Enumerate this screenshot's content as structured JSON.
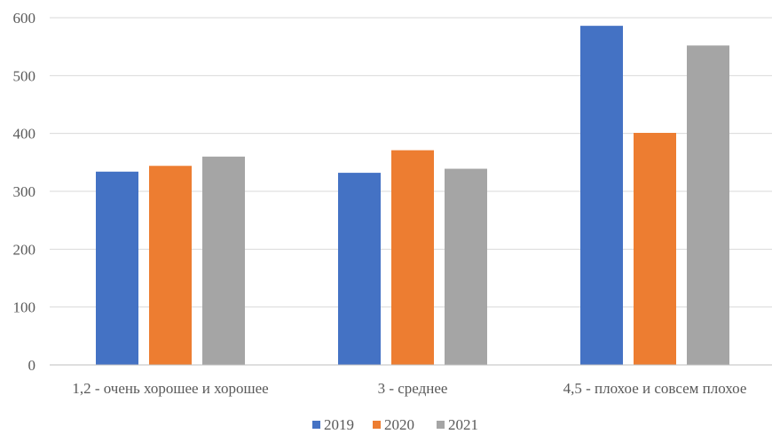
{
  "chart_data": {
    "type": "bar",
    "title": "",
    "xlabel": "",
    "ylabel": "",
    "categories": [
      "1,2 - очень хорошее и хорошее",
      "3 - среднее",
      "4,5 - плохое и совсем плохое"
    ],
    "series": [
      {
        "name": "2019",
        "color": "#4472C4",
        "values": [
          334,
          332,
          586
        ]
      },
      {
        "name": "2020",
        "color": "#ED7D31",
        "values": [
          344,
          371,
          401
        ]
      },
      {
        "name": "2021",
        "color": "#A5A5A5",
        "values": [
          360,
          339,
          552
        ]
      }
    ],
    "ylim": [
      0,
      600
    ],
    "yticks": [
      0,
      100,
      200,
      300,
      400,
      500,
      600
    ],
    "grid": true,
    "legend_position": "bottom"
  }
}
